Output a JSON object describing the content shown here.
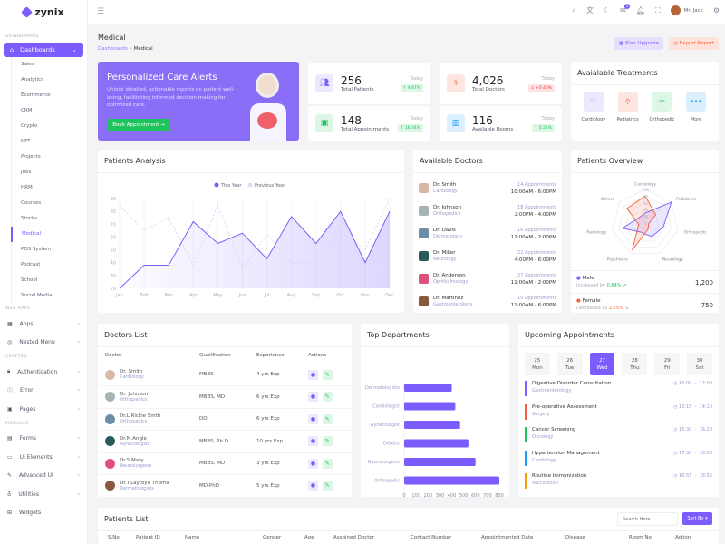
{
  "brand": "zynix",
  "sidebar": {
    "sections": [
      "DASHBOARDS",
      "WEB APPS",
      "CRAFTED",
      "MODULES"
    ],
    "dashboards": "Dashboards",
    "sub": [
      "Sales",
      "Analytics",
      "Ecommerce",
      "CRM",
      "Crypto",
      "NFT",
      "Projects",
      "Jobs",
      "HRM",
      "Courses",
      "Stocks",
      "Medical",
      "POS System",
      "Podcast",
      "School",
      "Social Media"
    ],
    "webapps": [
      "Apps",
      "Nested Menu"
    ],
    "crafted": [
      "Authentication",
      "Error",
      "Pages"
    ],
    "modules": [
      "Forms",
      "Ui Elements",
      "Advanced UI",
      "Utilities",
      "Widgets"
    ]
  },
  "header": {
    "user": "Mr. Jack",
    "notif_count": "5"
  },
  "page": {
    "title": "Medical",
    "crumb1": "Dashboards",
    "crumb2": "Medical",
    "plan": "Plan Upgrade",
    "export": "Export Report"
  },
  "banner": {
    "title": "Personalized Care Alerts",
    "text": "Unlock detailed, actionable reports on patient well-being, facilitating informed decision-making for optimized care.",
    "button": "Book Appointment →"
  },
  "stats": [
    {
      "value": "256",
      "label": "Total Patients",
      "when": "Today",
      "change": "↑ 4.97%",
      "up": true
    },
    {
      "value": "4,026",
      "label": "Total Doctors",
      "when": "Today",
      "change": "↓ +0.40%",
      "up": false
    },
    {
      "value": "148",
      "label": "Total Appointments",
      "when": "Today",
      "change": "↑ 16.34%",
      "up": true
    },
    {
      "value": "116",
      "label": "Available Rooms",
      "when": "Today",
      "change": "↑ 0.21%",
      "up": true
    }
  ],
  "treatments": {
    "title": "Avaialable Treatments",
    "items": [
      "Cardiology",
      "Pediatrics",
      "Orthopedic",
      "More"
    ]
  },
  "analysis": {
    "title": "Patients Analysis"
  },
  "doctors": {
    "title": "Available Doctors",
    "items": [
      {
        "name": "Dr. Smith",
        "spec": "Cardiology",
        "appts": "14 Appointments",
        "time": "10:00AM - 6:00PM"
      },
      {
        "name": "Dr. Johnson",
        "spec": "Orthopedics",
        "appts": "18 Appointments",
        "time": "2:00PM - 4:00PM"
      },
      {
        "name": "Dr. Davis",
        "spec": "Dermatology",
        "appts": "16 Appointments",
        "time": "12:00AM - 2:00PM"
      },
      {
        "name": "Dr. Miller",
        "spec": "Neurology",
        "appts": "22 Appointments",
        "time": "4:00PM - 6:00PM"
      },
      {
        "name": "Dr. Anderson",
        "spec": "Ophthalmology",
        "appts": "27 Appointments",
        "time": "11:00AM - 2:00PM"
      },
      {
        "name": "Dr. Martinez",
        "spec": "Gastroenterology",
        "appts": "10 Appointments",
        "time": "11:00AM - 6:00PM"
      }
    ]
  },
  "overview": {
    "title": "Patients Overview",
    "male": {
      "label": "Male",
      "prefix": "Increased by",
      "change": "0.64%",
      "value": "1,200"
    },
    "female": {
      "label": "Female",
      "prefix": "Decreased by",
      "change": "2.75%",
      "value": "750"
    }
  },
  "doclist": {
    "title": "Doctors List",
    "headers": [
      "Doctor",
      "Qualification",
      "Experience",
      "Actions"
    ],
    "rows": [
      {
        "name": "Dr. Smith",
        "spec": "Cardiology",
        "qual": "MBBS",
        "exp": "4 yrs Exp"
      },
      {
        "name": "Dr. Johnson",
        "spec": "Orthopedics",
        "qual": "MBBS, MD",
        "exp": "6 yrs Exp"
      },
      {
        "name": "Dr.L.Rickie Smth",
        "spec": "Orthopedics",
        "qual": "DO",
        "exp": "6 yrs Exp"
      },
      {
        "name": "Dr.M.Angle",
        "spec": "Gynecologist",
        "qual": "MBBS, Ph.D",
        "exp": "10 yrs Exp"
      },
      {
        "name": "Dr.S.Mary",
        "spec": "Neurosurgeon",
        "qual": "MBBS, MD",
        "exp": "3 yrs Exp"
      },
      {
        "name": "Dr.T.Laytoya Thoma",
        "spec": "Dermatologists",
        "qual": "MD-PhD",
        "exp": "5 yrs Exp"
      }
    ]
  },
  "departments": {
    "title": "Top Departments"
  },
  "upcoming": {
    "title": "Upcoming Appointments",
    "days": [
      {
        "d": "25",
        "w": "Mon"
      },
      {
        "d": "26",
        "w": "Tue"
      },
      {
        "d": "27",
        "w": "Wed"
      },
      {
        "d": "28",
        "w": "Thu"
      },
      {
        "d": "29",
        "w": "Fri"
      },
      {
        "d": "30",
        "w": "Sat"
      }
    ],
    "selected_day": "27",
    "items": [
      {
        "title": "Digestive Disorder Consultation",
        "dept": "Gastroenterology",
        "time": "10:00  -  12:00",
        "color": "#7c5cfc"
      },
      {
        "title": "Pre-operative Assessment",
        "dept": "Surgery",
        "time": "13:15  -  14:10",
        "color": "#f4613a"
      },
      {
        "title": "Cancer Screening",
        "dept": "Oncology",
        "time": "15:30  -  16:20",
        "color": "#1fc35b"
      },
      {
        "title": "Hypertension Management",
        "dept": "Cardiology",
        "time": "17:30  -  18:00",
        "color": "#1e9cf5"
      },
      {
        "title": "Routine Immunization",
        "dept": "Vaccination",
        "time": "16:55  -  18:55",
        "color": "#f59e0b"
      }
    ]
  },
  "patients": {
    "title": "Patients List",
    "search_placeholder": "Search Here",
    "sort": "Sort By ▾",
    "headers": [
      "S.No",
      "Patient ID",
      "Name",
      "Gender",
      "Age",
      "Assgined Doctor",
      "Contact Number",
      "Appointmented Date",
      "Disease",
      "Room No",
      "Action"
    ]
  },
  "colors": {
    "primary": "#7c5cfc",
    "success": "#1fc35b",
    "danger": "#f4613a"
  },
  "chart_data": [
    {
      "type": "area",
      "x": [
        "Jan",
        "Feb",
        "Mar",
        "Apr",
        "May",
        "Jun",
        "Jul",
        "Aug",
        "Sep",
        "Oct",
        "Nov",
        "Dec"
      ],
      "ylim": [
        20,
        90
      ],
      "yticks": [
        20,
        30,
        40,
        50,
        60,
        70,
        80,
        90
      ],
      "legend": "top",
      "series": [
        {
          "name": "This Year",
          "values": [
            20,
            38,
            38,
            72,
            55,
            63,
            43,
            76,
            55,
            80,
            40,
            80
          ]
        },
        {
          "name": "Previous Year",
          "values": [
            85,
            65,
            75,
            38,
            85,
            35,
            62,
            40,
            40,
            64,
            50,
            90
          ]
        }
      ]
    },
    {
      "type": "bar",
      "orientation": "horizontal",
      "categories": [
        "Dermatologists",
        "Cardiologist",
        "Gynecologist",
        "Dentist",
        "Neurosurgeon",
        "Orthopedic"
      ],
      "values": [
        400,
        430,
        470,
        540,
        600,
        800
      ],
      "xlim": [
        0,
        800
      ],
      "xticks": [
        0,
        100,
        200,
        300,
        400,
        500,
        600,
        700,
        800
      ]
    },
    {
      "type": "radar",
      "axes": [
        "Cardiology",
        "Pediatrics",
        "Orthopedic",
        "Neurology",
        "Psychiatry",
        "Radiology",
        "Others"
      ],
      "rlim": [
        0,
        100
      ],
      "rticks": [
        0,
        20,
        40,
        60,
        80,
        100
      ],
      "series": [
        {
          "name": "Male",
          "values": [
            30,
            100,
            55,
            45,
            30,
            70,
            25
          ]
        },
        {
          "name": "Female",
          "values": [
            80,
            40,
            10,
            20,
            90,
            20,
            70
          ]
        }
      ]
    }
  ]
}
